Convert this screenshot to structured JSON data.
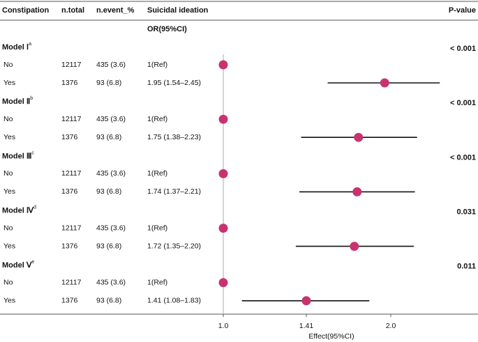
{
  "chart_data": {
    "type": "forest",
    "columns": {
      "group": "Constipation",
      "n_total": "n.total",
      "n_event": "n.event_%",
      "effect": "Suicidal ideation",
      "p_value": "P-value"
    },
    "effect_subheader": "OR(95%CI)",
    "x_label": "Effect(95%CI)",
    "log_x": true,
    "xlim": [
      1.0,
      2.0
    ],
    "xticks": [
      {
        "value": 1.0,
        "label": "1.0"
      },
      1.41,
      {
        "value": 2.0,
        "label": "2.0"
      }
    ],
    "color": "#c8336f",
    "reference_line": 1.0,
    "models": [
      {
        "label": "Model Ⅰ",
        "superscript": "a",
        "p_value": "< 0.001",
        "rows": [
          {
            "group": "No",
            "n_total": 12117,
            "n_event": "435 (3.6)",
            "or_text": "1(Ref)",
            "or": 1
          },
          {
            "group": "Yes",
            "n_total": 1376,
            "n_event": "93 (6.8)",
            "or_text": "1.95 (1.54–2.45)",
            "or": 1.95,
            "lower": 1.54,
            "upper": 2.45
          }
        ]
      },
      {
        "label": "Model Ⅱ",
        "superscript": "b",
        "p_value": "< 0.001",
        "rows": [
          {
            "group": "No",
            "n_total": 12117,
            "n_event": "435 (3.6)",
            "or_text": "1(Ref)",
            "or": 1
          },
          {
            "group": "Yes",
            "n_total": 1376,
            "n_event": "93 (6.8)",
            "or_text": "1.75 (1.38–2.23)",
            "or": 1.75,
            "lower": 1.38,
            "upper": 2.23
          }
        ]
      },
      {
        "label": "Model Ⅲ",
        "superscript": "c",
        "p_value": "< 0.001",
        "rows": [
          {
            "group": "No",
            "n_total": 12117,
            "n_event": "435 (3.6)",
            "or_text": "1(Ref)",
            "or": 1
          },
          {
            "group": "Yes",
            "n_total": 1376,
            "n_event": "93 (6.8)",
            "or_text": "1.74 (1.37–2.21)",
            "or": 1.74,
            "lower": 1.37,
            "upper": 2.21
          }
        ]
      },
      {
        "label": "Model Ⅳ",
        "superscript": "d",
        "p_value": "0.031",
        "rows": [
          {
            "group": "No",
            "n_total": 12117,
            "n_event": "435 (3.6)",
            "or_text": "1(Ref)",
            "or": 1
          },
          {
            "group": "Yes",
            "n_total": 1376,
            "n_event": "93 (6.8)",
            "or_text": "1.72 (1.35–2.20)",
            "or": 1.72,
            "lower": 1.35,
            "upper": 2.2
          }
        ]
      },
      {
        "label": "Model Ⅴ",
        "superscript": "e",
        "p_value": "0.011",
        "rows": [
          {
            "group": "No",
            "n_total": 12117,
            "n_event": "435 (3.6)",
            "or_text": "1(Ref)",
            "or": 1
          },
          {
            "group": "Yes",
            "n_total": 1376,
            "n_event": "93 (6.8)",
            "or_text": "1.41 (1.08–1.83)",
            "or": 1.41,
            "lower": 1.08,
            "upper": 1.83
          }
        ]
      }
    ]
  }
}
